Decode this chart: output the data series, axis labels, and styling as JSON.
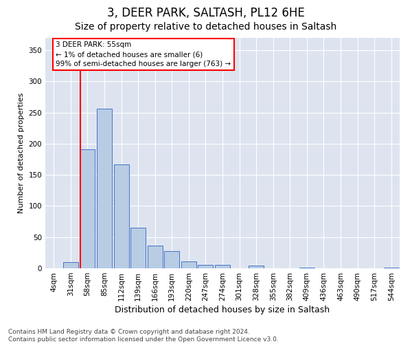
{
  "title1": "3, DEER PARK, SALTASH, PL12 6HE",
  "title2": "Size of property relative to detached houses in Saltash",
  "xlabel": "Distribution of detached houses by size in Saltash",
  "ylabel": "Number of detached properties",
  "bar_labels": [
    "4sqm",
    "31sqm",
    "58sqm",
    "85sqm",
    "112sqm",
    "139sqm",
    "166sqm",
    "193sqm",
    "220sqm",
    "247sqm",
    "274sqm",
    "301sqm",
    "328sqm",
    "355sqm",
    "382sqm",
    "409sqm",
    "436sqm",
    "463sqm",
    "490sqm",
    "517sqm",
    "544sqm"
  ],
  "bar_values": [
    0,
    10,
    191,
    256,
    167,
    65,
    37,
    28,
    11,
    6,
    5,
    0,
    4,
    0,
    0,
    1,
    0,
    0,
    0,
    0,
    1
  ],
  "bar_color": "#b8cce4",
  "bar_edge_color": "#4472c4",
  "background_color": "#dde4f0",
  "marker_color": "red",
  "annotation_text_line1": "3 DEER PARK: 55sqm",
  "annotation_text_line2": "← 1% of detached houses are smaller (6)",
  "annotation_text_line3": "99% of semi-detached houses are larger (763) →",
  "ylim": [
    0,
    370
  ],
  "yticks": [
    0,
    50,
    100,
    150,
    200,
    250,
    300,
    350
  ],
  "footnote": "Contains HM Land Registry data © Crown copyright and database right 2024.\nContains public sector information licensed under the Open Government Licence v3.0.",
  "title1_fontsize": 12,
  "title2_fontsize": 10,
  "xlabel_fontsize": 9,
  "ylabel_fontsize": 8,
  "tick_fontsize": 7.5,
  "footnote_fontsize": 6.5
}
